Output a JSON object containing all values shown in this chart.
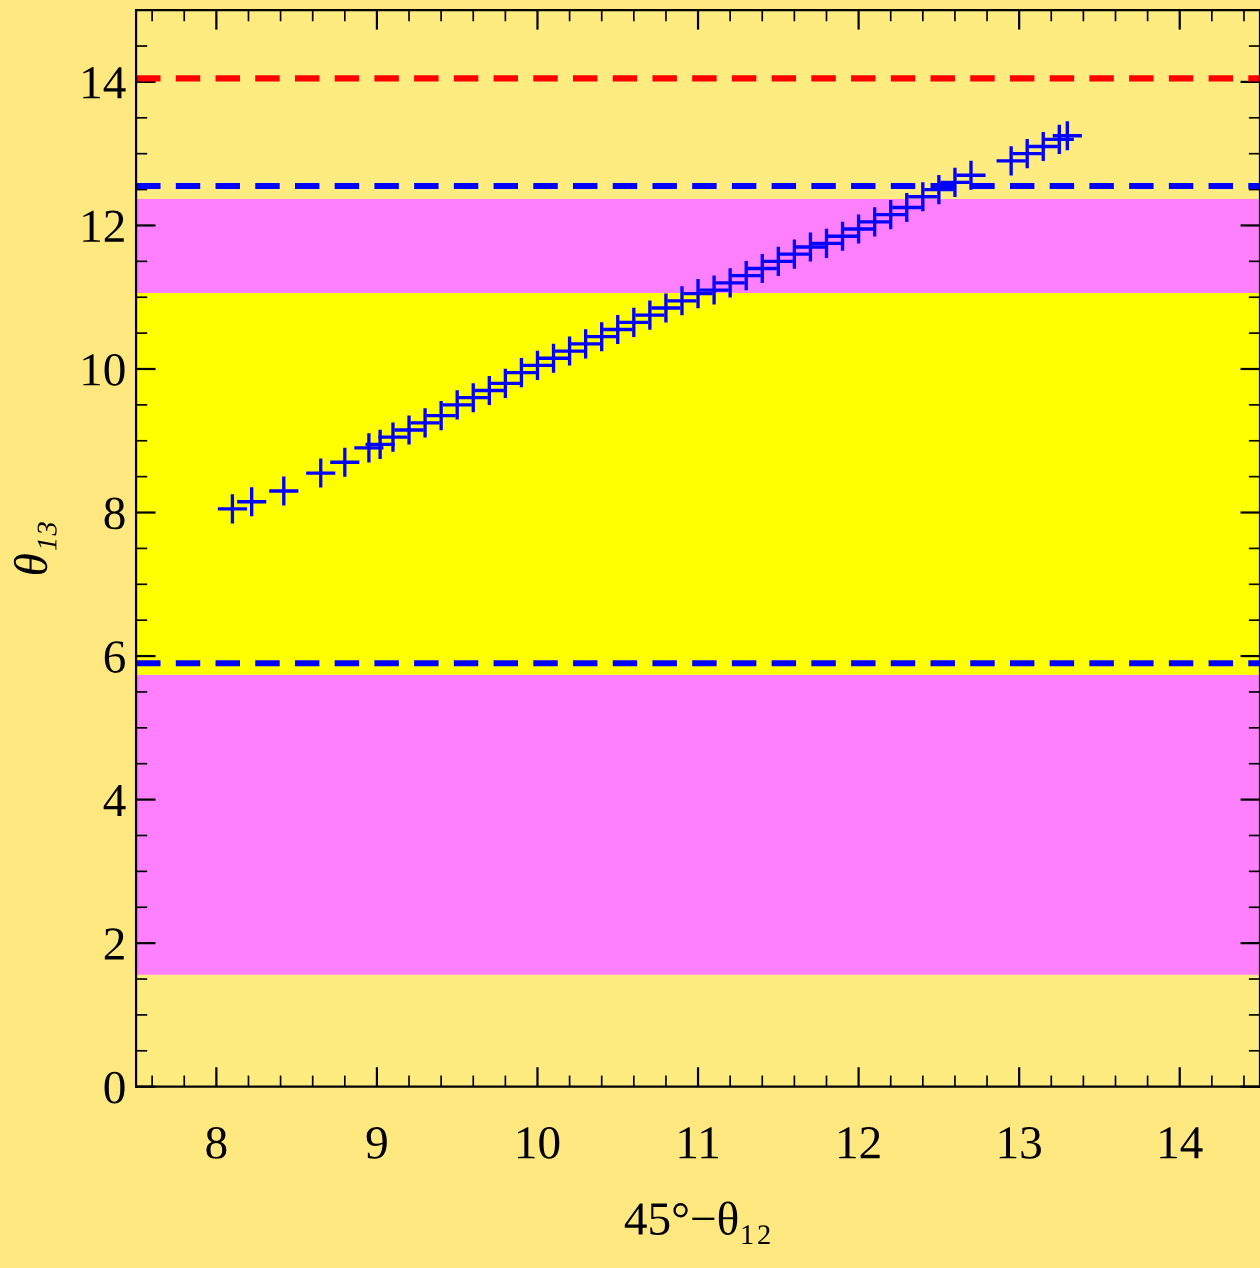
{
  "chart_data": {
    "type": "scatter",
    "xlabel": "45°−θ₁₂",
    "ylabel": "θ₁₃",
    "xlim": [
      7.5,
      14.5
    ],
    "ylim": [
      0,
      15
    ],
    "xticks": [
      8,
      9,
      10,
      11,
      12,
      13,
      14
    ],
    "yticks": [
      0,
      2,
      4,
      6,
      8,
      10,
      12,
      14
    ],
    "grid": false,
    "legend": false,
    "marker": "cross",
    "series": [
      {
        "color": "#0000ff",
        "x": [
          8.1,
          8.22,
          8.42,
          8.65,
          8.8,
          8.95,
          9.02,
          9.1,
          9.2,
          9.3,
          9.4,
          9.5,
          9.6,
          9.7,
          9.8,
          9.9,
          10.0,
          10.1,
          10.2,
          10.3,
          10.4,
          10.5,
          10.6,
          10.7,
          10.8,
          10.9,
          11.0,
          11.1,
          11.2,
          11.3,
          11.4,
          11.5,
          11.6,
          11.7,
          11.8,
          11.9,
          12.0,
          12.1,
          12.2,
          12.3,
          12.4,
          12.5,
          12.6,
          12.7,
          12.95,
          13.05,
          13.15,
          13.25,
          13.3
        ],
        "values": [
          8.05,
          8.15,
          8.3,
          8.55,
          8.7,
          8.9,
          8.95,
          9.05,
          9.15,
          9.25,
          9.35,
          9.5,
          9.6,
          9.7,
          9.8,
          9.95,
          10.05,
          10.15,
          10.25,
          10.35,
          10.45,
          10.55,
          10.65,
          10.75,
          10.85,
          10.95,
          11.05,
          11.1,
          11.2,
          11.3,
          11.4,
          11.5,
          11.6,
          11.7,
          11.75,
          11.85,
          11.95,
          12.05,
          12.15,
          12.25,
          12.4,
          12.5,
          12.6,
          12.7,
          12.9,
          13.0,
          13.1,
          13.2,
          13.25
        ]
      }
    ],
    "bands": [
      {
        "axis": "y",
        "from": 1.56,
        "to": 5.74,
        "color": "#ff80ff"
      },
      {
        "axis": "y",
        "from": 5.74,
        "to": 11.06,
        "color": "#ffff00"
      },
      {
        "axis": "y",
        "from": 11.06,
        "to": 12.37,
        "color": "#ff80ff"
      }
    ],
    "ref_lines": [
      {
        "axis": "y",
        "value": 14.05,
        "color": "#ff0000",
        "line_style": "dashed"
      },
      {
        "axis": "y",
        "value": 12.55,
        "color": "#0000ff",
        "line_style": "dashed"
      },
      {
        "axis": "y",
        "value": 5.9,
        "color": "#0000ff",
        "line_style": "dashed"
      }
    ]
  }
}
